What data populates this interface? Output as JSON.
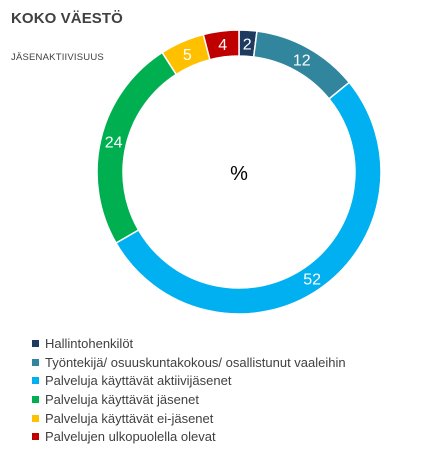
{
  "chart_data": {
    "type": "pie",
    "variant": "doughnut",
    "title": "KOKO VÄESTÖ",
    "subtitle": "JÄSENAKTIIVISUUS",
    "center_label": "%",
    "legend_position": "bottom-left",
    "series": [
      {
        "name": "Hallintohenkilöt",
        "value": 2,
        "color": "#1f3a5f"
      },
      {
        "name": "Työntekijä/ osuuskuntakokous/ osallistunut vaaleihin",
        "value": 12,
        "color": "#31859c"
      },
      {
        "name": "Palveluja käyttävät aktiivijäsenet",
        "value": 52,
        "color": "#00b0f0"
      },
      {
        "name": "Palveluja käyttävät jäsenet",
        "value": 24,
        "color": "#00b050"
      },
      {
        "name": "Palveluja käyttävät ei-jäsenet",
        "value": 5,
        "color": "#ffc000"
      },
      {
        "name": "Palvelujen ulkopuolella olevat",
        "value": 4,
        "color": "#c00000"
      }
    ]
  }
}
